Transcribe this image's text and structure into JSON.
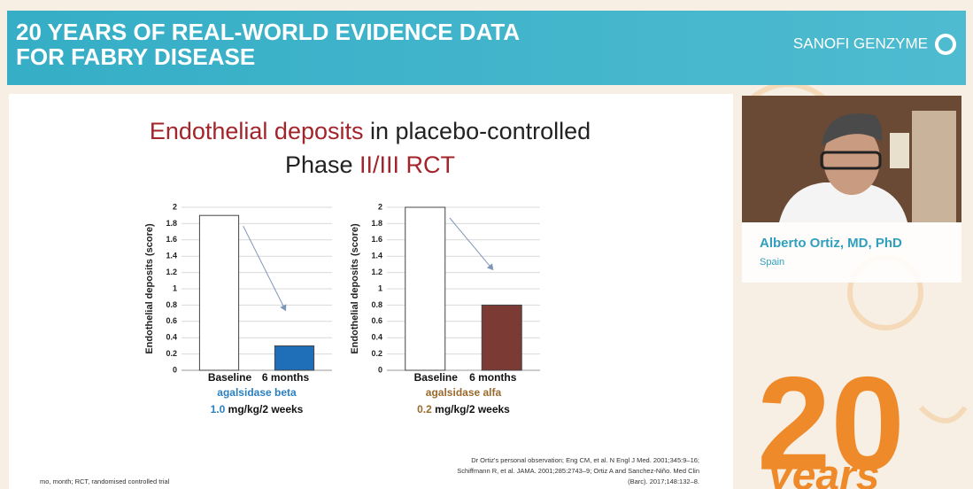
{
  "header": {
    "title_lines": [
      "20 YEARS OF REAL-WORLD EVIDENCE DATA",
      "FOR FABRY DISEASE"
    ],
    "brand": "SANOFI GENZYME"
  },
  "speaker": {
    "name": "Alberto Ortiz, MD, PhD",
    "country": "Spain"
  },
  "logo": {
    "number": "20",
    "word": "years"
  },
  "slide": {
    "title_line1": {
      "highlight": "Endothelial deposits",
      "rest": " in placebo-controlled"
    },
    "title_line2": {
      "lead": "Phase ",
      "highlight": "II/III RCT"
    },
    "footnote": "mo, month; RCT, randomised controlled trial",
    "references": [
      "Dr Ortiz's personal observation; Eng CM, et al. N Engl J Med. 2001;345:9–16;",
      "Schiffmann R, et al. JAMA. 2001;285:2743–9; Ortiz A and Sanchez-Niño. Med Clin",
      "(Barc). 2017;148:132–8."
    ]
  },
  "chart_data": [
    {
      "type": "bar",
      "y_label": "Endothelial deposits (score)",
      "categories": [
        "Baseline",
        "6 months"
      ],
      "values": [
        1.9,
        0.3
      ],
      "colors": [
        "#ffffff",
        "#1f6fb8"
      ],
      "drug": "agalsidase beta",
      "drug_color": "#2a7fc1",
      "dose": "1.0",
      "dose_unit": " mg/kg/2 weeks",
      "ylim": [
        0,
        2
      ],
      "yticks": [
        0,
        0.2,
        0.4,
        0.6,
        0.8,
        1,
        1.2,
        1.4,
        1.6,
        1.8,
        2
      ],
      "grid": true
    },
    {
      "type": "bar",
      "y_label": "Endothelial deposits (score)",
      "categories": [
        "Baseline",
        "6 months"
      ],
      "values": [
        2,
        0.8
      ],
      "colors": [
        "#ffffff",
        "#7b3a33"
      ],
      "drug": "agalsidase alfa",
      "drug_color": "#9a6a2e",
      "dose": "0.2",
      "dose_unit": " mg/kg/2 weeks",
      "ylim": [
        0,
        2
      ],
      "yticks": [
        0,
        0.2,
        0.4,
        0.6,
        0.8,
        1,
        1.2,
        1.4,
        1.6,
        1.8,
        2
      ],
      "grid": true
    }
  ]
}
